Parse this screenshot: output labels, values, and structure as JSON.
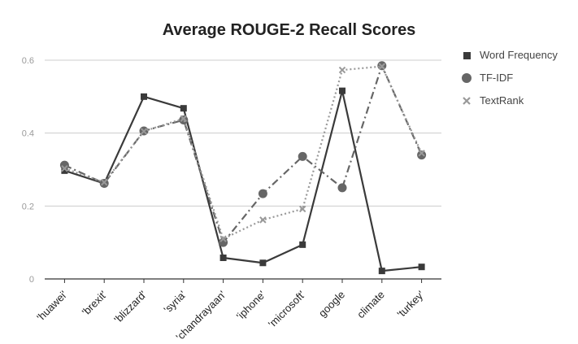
{
  "chart_data": {
    "type": "line",
    "title": "Average ROUGE-2 Recall Scores",
    "xlabel": "",
    "ylabel": "",
    "ylim": [
      0,
      0.6
    ],
    "yticks": [
      "0",
      "0.2",
      "0.4",
      "0.6"
    ],
    "grid": true,
    "legend_position": "right",
    "categories": [
      "'huawei'",
      "'brexit'",
      "'blizzard'",
      "'syria'",
      "'chandrayaan'",
      "'iphone'",
      "'microsoft'",
      "google",
      "climate",
      "'turkey'"
    ],
    "series": [
      {
        "name": "Word Frequency",
        "marker": "square",
        "line_style": "solid",
        "color": "#3a3a3a",
        "values": [
          0.297,
          0.262,
          0.5,
          0.468,
          0.058,
          0.044,
          0.094,
          0.516,
          0.022,
          0.033
        ]
      },
      {
        "name": "TF-IDF",
        "marker": "circle",
        "line_style": "dash-dot",
        "color": "#666666",
        "values": [
          0.312,
          0.262,
          0.406,
          0.436,
          0.1,
          0.234,
          0.336,
          0.25,
          0.585,
          0.34
        ]
      },
      {
        "name": "TextRank",
        "marker": "x",
        "line_style": "dotted",
        "color": "#999999",
        "values": [
          0.303,
          0.265,
          0.405,
          0.44,
          0.11,
          0.162,
          0.192,
          0.573,
          0.583,
          0.345
        ]
      }
    ]
  }
}
